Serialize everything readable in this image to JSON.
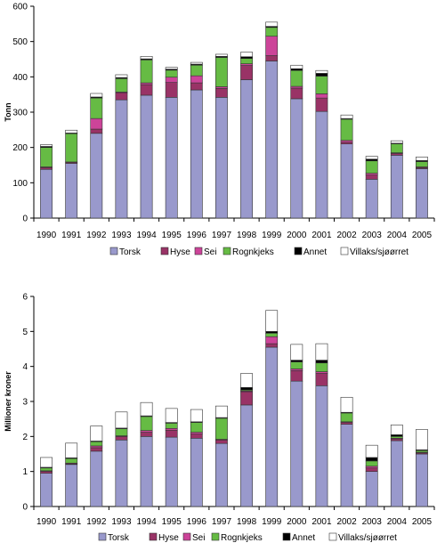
{
  "colors": {
    "Torsk": "#9999cc",
    "Hyse": "#993366",
    "Sei": "#cc4499",
    "Rognkjeks": "#66bb44",
    "Annet": "#000000",
    "Villaks/sjøørret": "#ffffff"
  },
  "chart_data": [
    {
      "type": "bar",
      "stacked": true,
      "categories": [
        "1990",
        "1991",
        "1992",
        "1993",
        "1994",
        "1995",
        "1996",
        "1997",
        "1998",
        "1999",
        "2000",
        "2001",
        "2002",
        "2003",
        "2004",
        "2005"
      ],
      "ylabel": "Tonn",
      "ylim": [
        0,
        600
      ],
      "yticks": [
        0,
        100,
        200,
        300,
        400,
        500,
        600
      ],
      "ytick_labels": [
        "0",
        "100",
        "200",
        "300",
        "400",
        "500",
        "600"
      ],
      "grid": false,
      "legend_position": "bottom",
      "series": [
        {
          "name": "Torsk",
          "values": [
            138,
            155,
            240,
            335,
            348,
            342,
            363,
            342,
            392,
            445,
            338,
            302,
            210,
            110,
            178,
            140
          ]
        },
        {
          "name": "Hyse",
          "values": [
            5,
            3,
            12,
            20,
            30,
            42,
            20,
            25,
            40,
            15,
            30,
            38,
            5,
            12,
            5,
            3
          ]
        },
        {
          "name": "Sei",
          "values": [
            2,
            1,
            30,
            2,
            5,
            15,
            20,
            5,
            5,
            55,
            5,
            12,
            5,
            5,
            2,
            2
          ]
        },
        {
          "name": "Rognkjeks",
          "values": [
            55,
            80,
            58,
            38,
            65,
            20,
            30,
            83,
            15,
            25,
            45,
            50,
            60,
            35,
            25,
            15
          ]
        },
        {
          "name": "Annet",
          "values": [
            3,
            2,
            3,
            3,
            3,
            3,
            3,
            3,
            5,
            3,
            5,
            8,
            2,
            5,
            2,
            3
          ]
        },
        {
          "name": "Villaks/sjøørret",
          "values": [
            5,
            8,
            10,
            8,
            7,
            5,
            5,
            6,
            13,
            12,
            10,
            8,
            10,
            8,
            7,
            10
          ]
        }
      ]
    },
    {
      "type": "bar",
      "stacked": true,
      "categories": [
        "1990",
        "1991",
        "1992",
        "1993",
        "1994",
        "1995",
        "1996",
        "1997",
        "1998",
        "1999",
        "2000",
        "2001",
        "2002",
        "2003",
        "2004",
        "2005"
      ],
      "ylabel": "Millioner kroner",
      "ylim": [
        0,
        6
      ],
      "yticks": [
        0,
        1,
        2,
        3,
        4,
        5,
        6
      ],
      "ytick_labels": [
        "0",
        "1",
        "2",
        "3",
        "4",
        "5",
        "6"
      ],
      "grid": false,
      "legend_position": "bottom",
      "series": [
        {
          "name": "Torsk",
          "values": [
            0.95,
            1.2,
            1.58,
            1.9,
            2.0,
            1.98,
            1.95,
            1.8,
            2.9,
            4.55,
            3.58,
            3.45,
            2.35,
            1.0,
            1.88,
            1.5
          ]
        },
        {
          "name": "Hyse",
          "values": [
            0.05,
            0.02,
            0.1,
            0.1,
            0.12,
            0.2,
            0.12,
            0.1,
            0.38,
            0.1,
            0.3,
            0.35,
            0.05,
            0.1,
            0.05,
            0.03
          ]
        },
        {
          "name": "Sei",
          "values": [
            0.02,
            0.02,
            0.05,
            0.02,
            0.05,
            0.05,
            0.05,
            0.02,
            0.02,
            0.2,
            0.05,
            0.05,
            0.02,
            0.05,
            0.02,
            0.02
          ]
        },
        {
          "name": "Rognkjeks",
          "values": [
            0.08,
            0.13,
            0.12,
            0.2,
            0.4,
            0.15,
            0.28,
            0.6,
            0.03,
            0.1,
            0.2,
            0.25,
            0.25,
            0.15,
            0.05,
            0.05
          ]
        },
        {
          "name": "Annet",
          "values": [
            0.02,
            0.02,
            0.02,
            0.02,
            0.02,
            0.02,
            0.02,
            0.02,
            0.07,
            0.05,
            0.05,
            0.08,
            0.02,
            0.1,
            0.05,
            0.02
          ]
        },
        {
          "name": "Villaks/sjøørret",
          "values": [
            0.28,
            0.42,
            0.43,
            0.46,
            0.38,
            0.4,
            0.35,
            0.33,
            0.4,
            0.6,
            0.45,
            0.47,
            0.43,
            0.35,
            0.28,
            0.58
          ]
        }
      ]
    }
  ]
}
